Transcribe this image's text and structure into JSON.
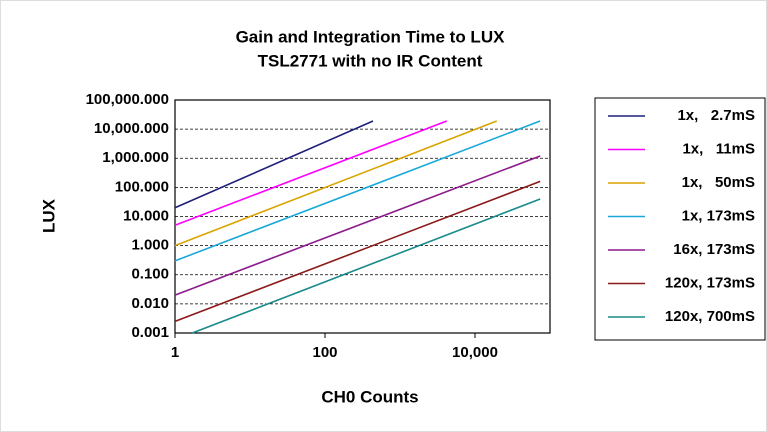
{
  "chart_data": {
    "type": "line",
    "title": "Gain and Integration Time to LUX",
    "subtitle": "TSL2771 with no IR Content",
    "xlabel": "CH0 Counts",
    "ylabel": "LUX",
    "xscale": "log",
    "yscale": "log",
    "grid": true,
    "legend": "right",
    "xlim": [
      1,
      100000
    ],
    "xticks": [
      1,
      100,
      {
        "value": 10000,
        "label": "10,000"
      }
    ],
    "ylim": [
      0.001,
      100000
    ],
    "yticks": [
      0.001,
      {
        "value": 0.01,
        "label": "0.010"
      },
      {
        "value": 0.1,
        "label": "0.100"
      },
      {
        "value": 1,
        "label": "1.000"
      },
      {
        "value": 10,
        "label": "10.000"
      },
      {
        "value": 100,
        "label": "100.000"
      },
      {
        "value": 1000,
        "label": "1,000.000"
      },
      {
        "value": 10000,
        "label": "10,000.000"
      },
      {
        "value": 100000,
        "label": "100,000.000"
      }
    ],
    "series": [
      {
        "name": "1x,   2.7mS",
        "color": "#1f1f7a",
        "x": [
          1,
          437
        ],
        "values": [
          20,
          19000
        ]
      },
      {
        "name": "1x,   11mS",
        "color": "#ff00ff",
        "x": [
          1,
          4200
        ],
        "values": [
          5,
          19000
        ]
      },
      {
        "name": "1x,   50mS",
        "color": "#d9a400",
        "x": [
          1,
          19500
        ],
        "values": [
          1,
          19000
        ]
      },
      {
        "name": "1x, 173mS",
        "color": "#19a8d9",
        "x": [
          1,
          74000
        ],
        "values": [
          0.3,
          19000
        ]
      },
      {
        "name": "16x, 173mS",
        "color": "#8b1a8b",
        "x": [
          1,
          74000
        ],
        "values": [
          0.02,
          1200
        ]
      },
      {
        "name": "120x, 173mS",
        "color": "#8b1a1a",
        "x": [
          1,
          74000
        ],
        "values": [
          0.0025,
          160
        ]
      },
      {
        "name": "120x, 700mS",
        "color": "#1a8b8b",
        "x": [
          1.7,
          74000
        ],
        "values": [
          0.001,
          40
        ]
      }
    ]
  }
}
